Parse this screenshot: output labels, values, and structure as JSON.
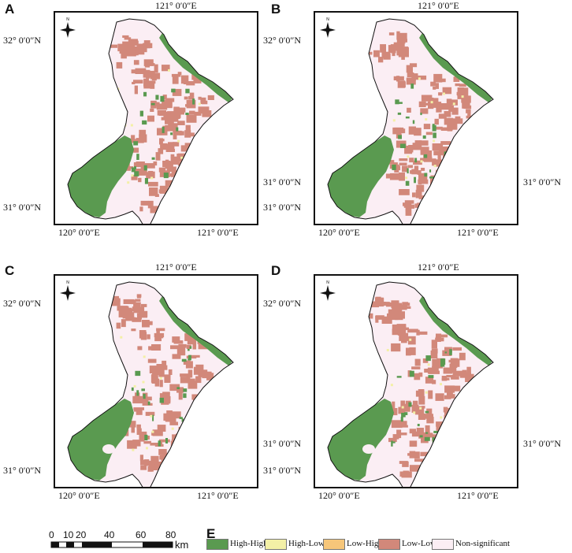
{
  "panels": [
    {
      "label": "A"
    },
    {
      "label": "B"
    },
    {
      "label": "C"
    },
    {
      "label": "D"
    }
  ],
  "coords": {
    "lon_top": "121° 0′0″E",
    "lon_bottom_left": "120° 0′0″E",
    "lon_bottom_right": "121° 0′0″E",
    "lat_top": "32° 0′0″N",
    "lat_mid": "31° 0′0″N",
    "lat_bottom": "31° 0′0″N"
  },
  "compass": {
    "north_letter": "N",
    "icon": "compass-rose-icon"
  },
  "scale_bar": {
    "ticks": [
      "0",
      "10",
      "20",
      "40",
      "60",
      "80"
    ],
    "unit": "km"
  },
  "legend": {
    "label": "E",
    "items": [
      {
        "label": "High-High",
        "color": "#5a9a50"
      },
      {
        "label": "High-Low",
        "color": "#f3f0a6"
      },
      {
        "label": "Low-High",
        "color": "#f6c67a"
      },
      {
        "label": "Low-Low",
        "color": "#d2887a"
      },
      {
        "label": "Non-significant",
        "color": "#fbeef4"
      }
    ]
  }
}
